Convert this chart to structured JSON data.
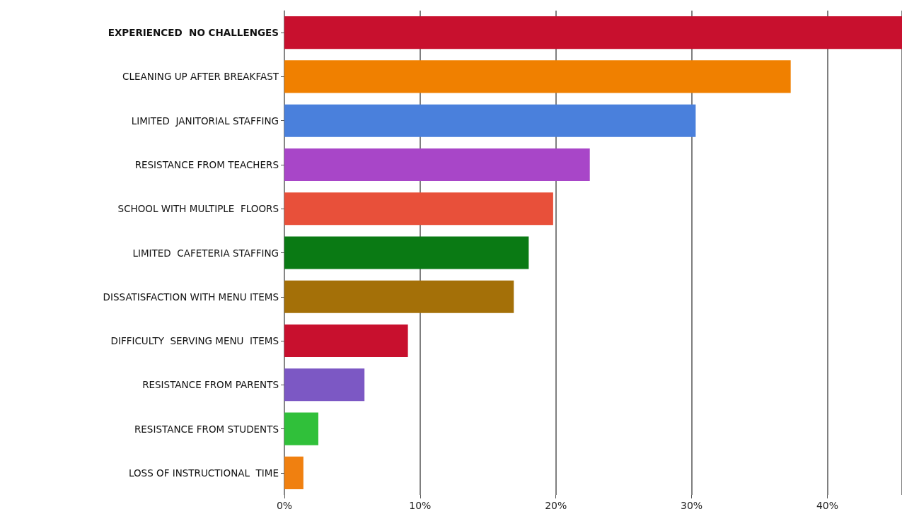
{
  "chart_data": {
    "type": "bar",
    "orientation": "horizontal",
    "categories": [
      "EXPERIENCED  NO CHALLENGES",
      "CLEANING UP AFTER BREAKFAST",
      "LIMITED  JANITORIAL STAFFING",
      "RESISTANCE FROM TEACHERS",
      "SCHOOL WITH MULTIPLE  FLOORS",
      "LIMITED  CAFETERIA STAFFING",
      "DISSATISFACTION WITH MENU ITEMS",
      "DIFFICULTY  SERVING MENU  ITEMS",
      "RESISTANCE FROM PARENTS",
      "RESISTANCE FROM STUDENTS",
      "LOSS OF INSTRUCTIONAL  TIME"
    ],
    "values": [
      45.5,
      37.3,
      30.3,
      22.5,
      19.8,
      18.0,
      16.9,
      9.1,
      5.9,
      2.5,
      1.4
    ],
    "colors": [
      "#c8102e",
      "#f08000",
      "#4a80dc",
      "#a846c8",
      "#e8503a",
      "#0a7a14",
      "#a47008",
      "#c8102e",
      "#7c58c4",
      "#30c03a",
      "#f08010"
    ],
    "xlim": [
      0,
      45.5
    ],
    "xticks": [
      {
        "value": 0,
        "label": "0%"
      },
      {
        "value": 10,
        "label": "10%"
      },
      {
        "value": 20,
        "label": "20%"
      },
      {
        "value": 30,
        "label": "30%"
      },
      {
        "value": 40,
        "label": "40%"
      }
    ],
    "grid": "x"
  }
}
